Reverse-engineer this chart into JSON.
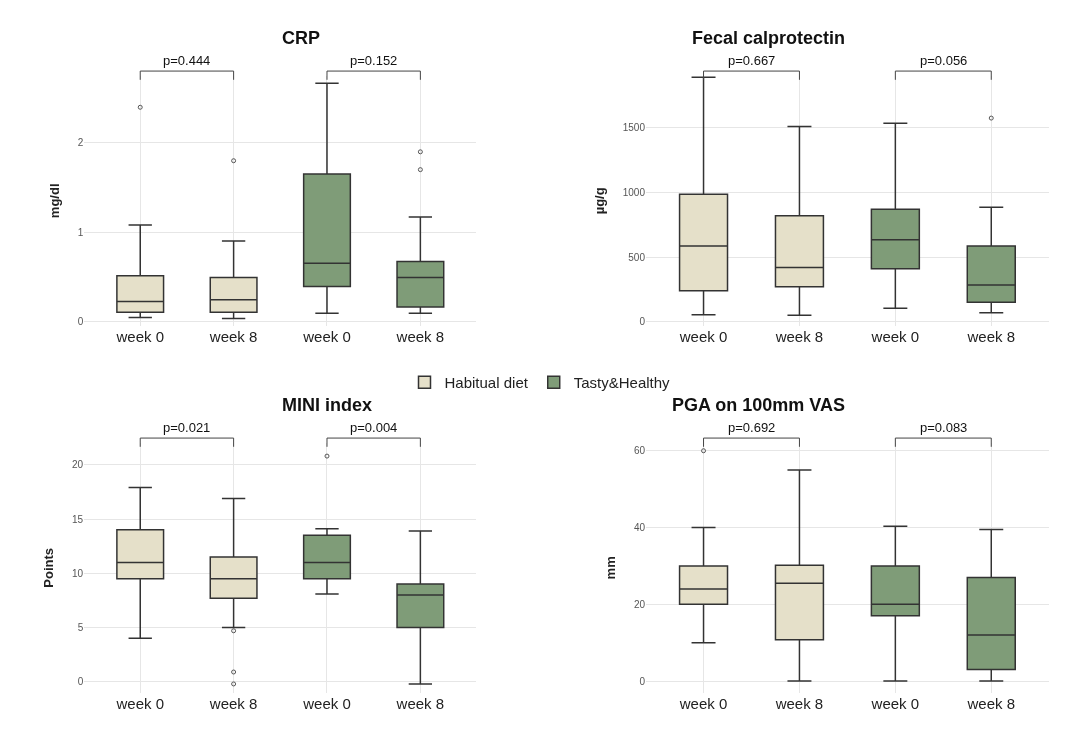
{
  "chart_data": [
    {
      "type": "box",
      "title": "CRP",
      "ylabel": "mg/dl",
      "categories": [
        "week 0",
        "week 8",
        "week 0",
        "week 8"
      ],
      "ylim": [
        -0.05,
        2.75
      ],
      "yticks": [
        0,
        1,
        2
      ],
      "grid": true,
      "legend": "bottom",
      "annotations": [
        "p=0.444",
        "p=0.152"
      ],
      "series": [
        {
          "name": "Habitual diet",
          "color": "#e5e0c9",
          "boxes": [
            {
              "low": 0.04,
              "q1": 0.1,
              "median": 0.22,
              "q3": 0.51,
              "high": 1.08,
              "outliers": [
                2.4
              ]
            },
            {
              "low": 0.03,
              "q1": 0.1,
              "median": 0.24,
              "q3": 0.49,
              "high": 0.9,
              "outliers": [
                1.8
              ]
            },
            null,
            null
          ]
        },
        {
          "name": "Tasty&Healthy",
          "color": "#7f9c78",
          "boxes": [
            null,
            null,
            {
              "low": 0.09,
              "q1": 0.39,
              "median": 0.65,
              "q3": 1.65,
              "high": 2.67
            },
            {
              "low": 0.09,
              "q1": 0.16,
              "median": 0.49,
              "q3": 0.67,
              "high": 1.17,
              "outliers": [
                1.7,
                1.9
              ]
            }
          ]
        }
      ]
    },
    {
      "type": "box",
      "title": "Fecal calprotectin",
      "ylabel": "µg/g",
      "categories": [
        "week 0",
        "week 8",
        "week 0",
        "week 8"
      ],
      "ylim": [
        -30,
        1900
      ],
      "yticks": [
        0,
        500,
        1000,
        1500
      ],
      "grid": true,
      "annotations": [
        "p=0.667",
        "p=0.056"
      ],
      "series": [
        {
          "name": "Habitual diet",
          "color": "#e5e0c9",
          "boxes": [
            {
              "low": 55,
              "q1": 240,
              "median": 585,
              "q3": 985,
              "high": 1890
            },
            {
              "low": 50,
              "q1": 270,
              "median": 420,
              "q3": 820,
              "high": 1510
            },
            null,
            null
          ]
        },
        {
          "name": "Tasty&Healthy",
          "color": "#7f9c78",
          "boxes": [
            null,
            null,
            {
              "low": 105,
              "q1": 410,
              "median": 635,
              "q3": 870,
              "high": 1535
            },
            {
              "low": 70,
              "q1": 150,
              "median": 285,
              "q3": 585,
              "high": 885,
              "outliers": [
                1575
              ]
            }
          ]
        }
      ]
    },
    {
      "type": "box",
      "title": "MINI index",
      "ylabel": "Points",
      "categories": [
        "week 0",
        "week 8",
        "week 0",
        "week 8"
      ],
      "ylim": [
        -1,
        22
      ],
      "yticks": [
        0,
        5,
        10,
        15,
        20
      ],
      "grid": true,
      "annotations": [
        "p=0.021",
        "p=0.004"
      ],
      "series": [
        {
          "name": "Habitual diet",
          "color": "#e5e0c9",
          "boxes": [
            {
              "low": 4,
              "q1": 9.5,
              "median": 11,
              "q3": 14,
              "high": 17.9
            },
            {
              "low": 5,
              "q1": 7.7,
              "median": 9.5,
              "q3": 11.5,
              "high": 16.9,
              "outliers": [
                4.7,
                0.9,
                -0.2
              ]
            },
            null,
            null
          ]
        },
        {
          "name": "Tasty&Healthy",
          "color": "#7f9c78",
          "boxes": [
            null,
            null,
            {
              "low": 8.1,
              "q1": 9.5,
              "median": 11,
              "q3": 13.5,
              "high": 14.1,
              "outliers": [
                20.8
              ]
            },
            {
              "low": -0.2,
              "q1": 5,
              "median": 8,
              "q3": 9,
              "high": 13.9
            }
          ]
        }
      ]
    },
    {
      "type": "box",
      "title": "PGA on 100mm VAS",
      "ylabel": "mm",
      "categories": [
        "week 0",
        "week 8",
        "week 0",
        "week 8"
      ],
      "ylim": [
        -3,
        62
      ],
      "yticks": [
        0,
        20,
        40,
        60
      ],
      "grid": true,
      "annotations": [
        "p=0.692",
        "p=0.083"
      ],
      "series": [
        {
          "name": "Habitual diet",
          "color": "#e5e0c9",
          "boxes": [
            {
              "low": 10,
              "q1": 20,
              "median": 24,
              "q3": 30,
              "high": 40,
              "outliers": [
                60
              ]
            },
            {
              "low": 0,
              "q1": 10.8,
              "median": 25.5,
              "q3": 30.2,
              "high": 55
            },
            null,
            null
          ]
        },
        {
          "name": "Tasty&Healthy",
          "color": "#7f9c78",
          "boxes": [
            null,
            null,
            {
              "low": 0,
              "q1": 17,
              "median": 20,
              "q3": 30,
              "high": 40.3
            },
            {
              "low": 0,
              "q1": 3,
              "median": 12,
              "q3": 27,
              "high": 39.5
            }
          ]
        }
      ]
    }
  ]
}
